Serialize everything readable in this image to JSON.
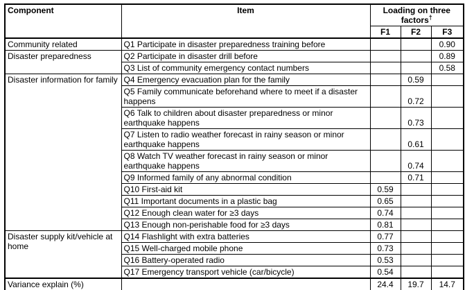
{
  "colors": {
    "border": "#000000",
    "background": "#ffffff",
    "text": "#000000"
  },
  "table": {
    "header": {
      "component": "Component",
      "item": "Item",
      "loading_line1": "Loading on three",
      "loading_line2": "factors",
      "dagger": "†",
      "factors": [
        "F1",
        "F2",
        "F3"
      ]
    },
    "rows": [
      {
        "component": "Community related",
        "component_rowspan": 1,
        "item": "Q1 Participate in disaster preparedness training before",
        "f1": "",
        "f2": "",
        "f3": "0.90"
      },
      {
        "component": "Disaster preparedness",
        "component_rowspan": 2,
        "item": "Q2 Participate in disaster drill before",
        "f1": "",
        "f2": "",
        "f3": "0.89"
      },
      {
        "item": "Q3 List of community emergency contact numbers",
        "f1": "",
        "f2": "",
        "f3": "0.58"
      },
      {
        "component": "Disaster information for family",
        "component_rowspan": 10,
        "item": "Q4 Emergency evacuation plan for the family",
        "f1": "",
        "f2": "0.59",
        "f3": ""
      },
      {
        "item": "Q5 Family communicate beforehand where to meet if a disaster happens",
        "f1": "",
        "f2": "0.72",
        "f3": ""
      },
      {
        "item": "Q6 Talk to children about disaster preparedness or minor earthquake happens",
        "f1": "",
        "f2": "0.73",
        "f3": ""
      },
      {
        "item": "Q7 Listen to radio weather forecast in rainy season or minor earthquake happens",
        "f1": "",
        "f2": "0.61",
        "f3": ""
      },
      {
        "item": "Q8 Watch TV weather forecast in rainy season or minor earthquake happens",
        "f1": "",
        "f2": "0.74",
        "f3": ""
      },
      {
        "item": "Q9 Informed family of any abnormal condition",
        "f1": "",
        "f2": "0.71",
        "f3": ""
      },
      {
        "item": "Q10 First-aid kit",
        "f1": "0.59",
        "f2": "",
        "f3": ""
      },
      {
        "item": "Q11 Important documents in a plastic bag",
        "f1": "0.65",
        "f2": "",
        "f3": ""
      },
      {
        "item": "Q12 Enough clean water for ≥3 days",
        "f1": "0.74",
        "f2": "",
        "f3": ""
      },
      {
        "item": "Q13 Enough non-perishable food for ≥3 days",
        "f1": "0.81",
        "f2": "",
        "f3": ""
      },
      {
        "component": "Disaster supply kit/vehicle at home",
        "component_rowspan": 4,
        "item": "Q14 Flashlight with extra batteries",
        "f1": "0.77",
        "f2": "",
        "f3": ""
      },
      {
        "item": "Q15 Well-charged mobile phone",
        "f1": "0.73",
        "f2": "",
        "f3": ""
      },
      {
        "item": "Q16 Battery-operated radio",
        "f1": "0.53",
        "f2": "",
        "f3": ""
      },
      {
        "item": "Q17 Emergency transport vehicle (car/bicycle)",
        "f1": "0.54",
        "f2": "",
        "f3": ""
      }
    ],
    "footer": {
      "label": "Variance explain (%)",
      "item": "",
      "f1": "24.4",
      "f2": "19.7",
      "f3": "14.7"
    }
  }
}
